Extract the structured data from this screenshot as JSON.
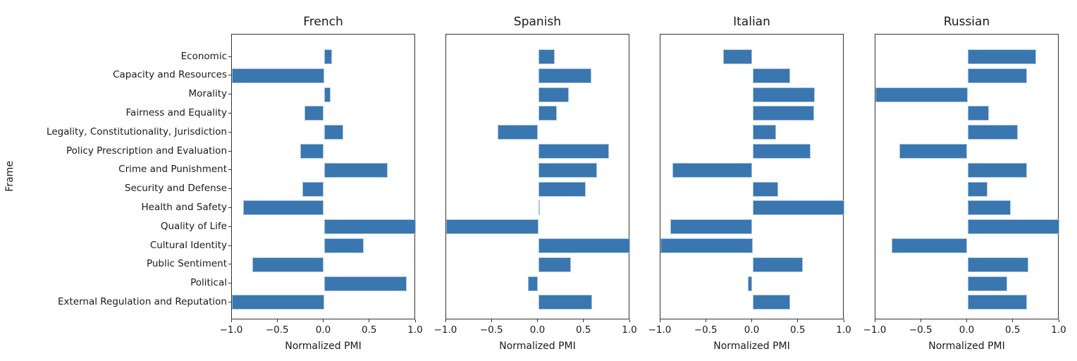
{
  "figure": {
    "ylabel": "Frame",
    "xlabel": "Normalized PMI",
    "x_tick_labels": [
      "−1.0",
      "−0.5",
      "0.0",
      "0.5",
      "1.0"
    ],
    "bar_color": "#3a76af",
    "bar_edge_color": "#a9c5de",
    "spine_color": "#333333",
    "text_color": "#1a1a1a"
  },
  "chart_data": {
    "type": "bar",
    "orientation": "horizontal",
    "title": "",
    "xlabel": "Normalized PMI",
    "ylabel": "Frame",
    "xlim": [
      -1.0,
      1.0
    ],
    "x_ticks": [
      -1.0,
      -0.5,
      0.0,
      0.5,
      1.0
    ],
    "grid": false,
    "legend": "none",
    "categories": [
      "Economic",
      "Capacity and Resources",
      "Morality",
      "Fairness and Equality",
      "Legality, Constitutionality, Jurisdiction",
      "Policy Prescription and Evaluation",
      "Crime and Punishment",
      "Security and Defense",
      "Health and Safety",
      "Quality of Life",
      "Cultural Identity",
      "Public Sentiment",
      "Political",
      "External Regulation and Reputation"
    ],
    "series": [
      {
        "name": "French",
        "values": [
          0.09,
          -1.0,
          0.07,
          -0.21,
          0.21,
          -0.26,
          0.69,
          -0.23,
          -0.88,
          1.0,
          0.43,
          -0.78,
          0.9,
          -1.0
        ]
      },
      {
        "name": "Spanish",
        "values": [
          0.18,
          0.58,
          0.33,
          0.2,
          -0.44,
          0.77,
          0.64,
          0.52,
          0.02,
          -1.0,
          1.0,
          0.36,
          -0.11,
          0.59
        ]
      },
      {
        "name": "Italian",
        "values": [
          -0.32,
          0.41,
          0.68,
          0.67,
          0.26,
          0.63,
          -0.87,
          0.28,
          1.0,
          -0.89,
          -1.0,
          0.55,
          -0.05,
          0.41
        ]
      },
      {
        "name": "Russian",
        "values": [
          0.75,
          0.65,
          -1.0,
          0.23,
          0.55,
          -0.74,
          0.65,
          0.22,
          0.47,
          1.0,
          -0.82,
          0.66,
          0.43,
          0.65
        ]
      }
    ]
  }
}
